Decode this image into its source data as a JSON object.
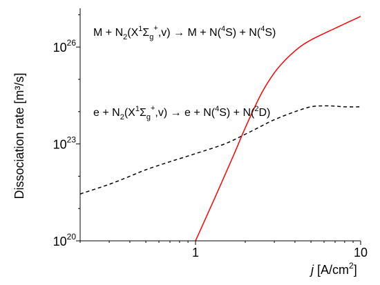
{
  "chart_data": {
    "type": "line",
    "xlabel_italic": "j",
    "xlabel_unit": " [A/cm",
    "xlabel_sup": "2",
    "xlabel_close": "]",
    "ylabel": "Dissociation rate [m³/s]",
    "x_scale": "log",
    "y_scale": "log",
    "xlim": [
      0.2,
      10
    ],
    "ylim_log10": [
      20,
      27.2
    ],
    "x_ticks": [
      {
        "value": 1,
        "label": "1"
      },
      {
        "value": 10,
        "label": "10"
      }
    ],
    "y_ticks": [
      {
        "exp": 20,
        "base": "10",
        "sup": "20"
      },
      {
        "exp": 23,
        "base": "10",
        "sup": "23"
      },
      {
        "exp": 26,
        "base": "10",
        "sup": "26"
      }
    ],
    "grid": false,
    "series": [
      {
        "style": "solid",
        "color": "#ff0000",
        "log10_y_vs_x": [
          [
            1.0,
            20.0
          ],
          [
            1.3,
            21.3
          ],
          [
            1.7,
            22.65
          ],
          [
            2.0,
            23.5
          ],
          [
            2.5,
            24.55
          ],
          [
            3.0,
            25.2
          ],
          [
            3.5,
            25.6
          ],
          [
            4.0,
            25.88
          ],
          [
            4.5,
            26.08
          ],
          [
            5.0,
            26.22
          ],
          [
            6.0,
            26.42
          ],
          [
            7.0,
            26.58
          ],
          [
            8.0,
            26.72
          ],
          [
            9.0,
            26.84
          ],
          [
            10.0,
            26.95
          ]
        ]
      },
      {
        "style": "dashed",
        "color": "#000000",
        "log10_y_vs_x": [
          [
            0.2,
            21.45
          ],
          [
            0.3,
            21.75
          ],
          [
            0.4,
            22.0
          ],
          [
            0.5,
            22.2
          ],
          [
            0.7,
            22.45
          ],
          [
            1.0,
            22.7
          ],
          [
            1.5,
            23.0
          ],
          [
            2.0,
            23.3
          ],
          [
            2.5,
            23.55
          ],
          [
            3.0,
            23.75
          ],
          [
            4.0,
            24.0
          ],
          [
            5.0,
            24.15
          ],
          [
            6.0,
            24.18
          ],
          [
            7.0,
            24.17
          ],
          [
            8.0,
            24.15
          ],
          [
            10.0,
            24.15
          ]
        ]
      }
    ],
    "annotations": [
      {
        "id": "reaction-1",
        "text": "M + N2(X1Σg+,v) → M + N(4S) + N(4S)",
        "parts": [
          {
            "t": "M + N"
          },
          {
            "t": "2",
            "pos": "sub"
          },
          {
            "t": "(X"
          },
          {
            "t": "1",
            "pos": "sup"
          },
          {
            "t": "Σ"
          },
          {
            "t": "g",
            "pos": "sub"
          },
          {
            "t": "+",
            "pos": "sup2"
          },
          {
            "t": ",v) → M + N("
          },
          {
            "t": "4",
            "pos": "sup"
          },
          {
            "t": "S) + N("
          },
          {
            "t": "4",
            "pos": "sup"
          },
          {
            "t": "S)"
          }
        ]
      },
      {
        "id": "reaction-2",
        "text": "e + N2(X1Σg+,v) → e + N(4S) + N(2D)",
        "parts": [
          {
            "t": "e + N"
          },
          {
            "t": "2",
            "pos": "sub"
          },
          {
            "t": "(X"
          },
          {
            "t": "1",
            "pos": "sup"
          },
          {
            "t": "Σ"
          },
          {
            "t": "g",
            "pos": "sub"
          },
          {
            "t": "+",
            "pos": "sup2"
          },
          {
            "t": ",v) → e + N("
          },
          {
            "t": "4",
            "pos": "sup"
          },
          {
            "t": "S) + N("
          },
          {
            "t": "2",
            "pos": "sup"
          },
          {
            "t": "D)"
          }
        ]
      }
    ]
  }
}
